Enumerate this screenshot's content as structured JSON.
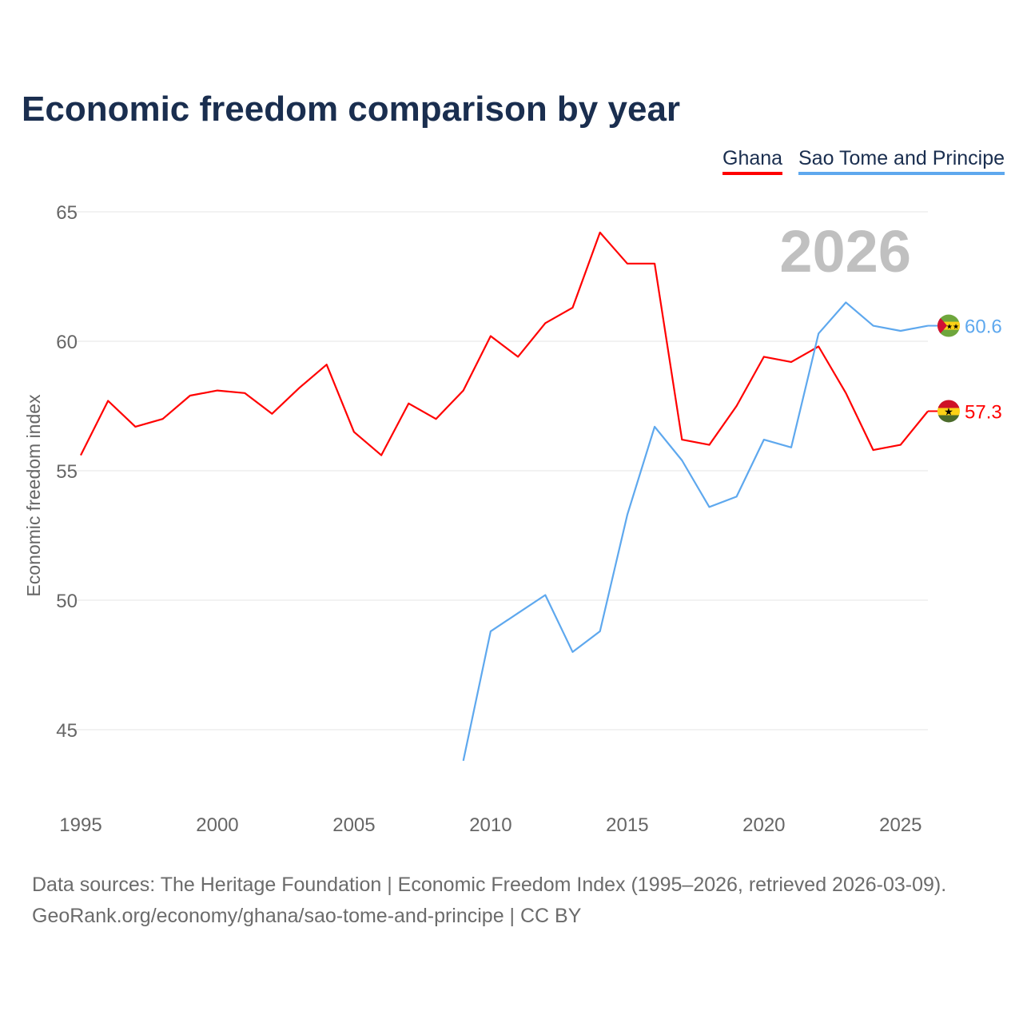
{
  "chart_data": {
    "type": "line",
    "title": "Economic freedom comparison by year",
    "ylabel": "Economic freedom index",
    "xlabel": "",
    "year_watermark": "2026",
    "xlim": [
      1995,
      2026
    ],
    "ylim": [
      42,
      66
    ],
    "x_ticks": [
      1995,
      2000,
      2005,
      2010,
      2015,
      2020,
      2025
    ],
    "y_ticks": [
      45,
      50,
      55,
      60,
      65
    ],
    "grid": true,
    "legend_position": "top-right",
    "series": [
      {
        "name": "Ghana",
        "color": "#ff0000",
        "end_label": "57.3",
        "x": [
          1995,
          1996,
          1997,
          1998,
          1999,
          2000,
          2001,
          2002,
          2003,
          2004,
          2005,
          2006,
          2007,
          2008,
          2009,
          2010,
          2011,
          2012,
          2013,
          2014,
          2015,
          2016,
          2017,
          2018,
          2019,
          2020,
          2021,
          2022,
          2023,
          2024,
          2025,
          2026
        ],
        "values": [
          55.6,
          57.7,
          56.7,
          57.0,
          57.9,
          58.1,
          58.0,
          57.2,
          58.2,
          59.1,
          56.5,
          55.6,
          57.6,
          57.0,
          58.1,
          60.2,
          59.4,
          60.7,
          61.3,
          64.2,
          63.0,
          63.0,
          56.2,
          56.0,
          57.5,
          59.4,
          59.2,
          59.8,
          58.0,
          55.8,
          56.0,
          57.3
        ]
      },
      {
        "name": "Sao Tome and Principe",
        "color": "#5ea8ee",
        "end_label": "60.6",
        "x": [
          2009,
          2010,
          2011,
          2012,
          2013,
          2014,
          2015,
          2016,
          2017,
          2018,
          2019,
          2020,
          2021,
          2022,
          2023,
          2024,
          2025,
          2026
        ],
        "values": [
          43.8,
          48.8,
          49.5,
          50.2,
          48.0,
          48.8,
          53.3,
          56.7,
          55.4,
          53.6,
          54.0,
          56.2,
          55.9,
          60.3,
          61.5,
          60.6,
          60.4,
          60.6
        ]
      }
    ]
  },
  "footer": {
    "line1": "Data sources: The Heritage Foundation | Economic Freedom Index (1995–2026, retrieved 2026-03-09).",
    "line2": "GeoRank.org/economy/ghana/sao-tome-and-principe | CC BY"
  }
}
